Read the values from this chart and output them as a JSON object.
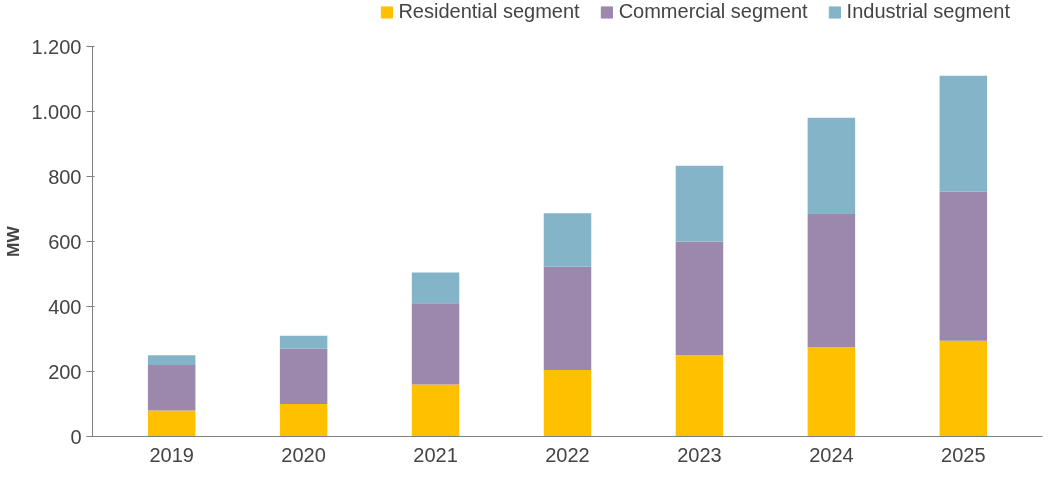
{
  "chart_data": {
    "type": "bar",
    "stacked": true,
    "ylabel": "MW",
    "categories": [
      "2019",
      "2020",
      "2021",
      "2022",
      "2023",
      "2024",
      "2025"
    ],
    "series": [
      {
        "name": "Residential segment",
        "color": "#ffc000",
        "values": [
          80,
          100,
          160,
          205,
          250,
          275,
          295
        ]
      },
      {
        "name": "Commercial segment",
        "color": "#9d88ad",
        "values": [
          140,
          170,
          250,
          317,
          350,
          410,
          458
        ]
      },
      {
        "name": "Industrial segment",
        "color": "#84b4c8",
        "values": [
          30,
          40,
          95,
          165,
          233,
          296,
          357
        ]
      }
    ],
    "ylim": [
      0,
      1200
    ],
    "yticks": [
      0,
      200,
      400,
      600,
      800,
      {
        "value": 1000,
        "label": "1.000"
      },
      {
        "value": 1200,
        "label": "1.200"
      }
    ],
    "grid": false,
    "legend": "top"
  }
}
